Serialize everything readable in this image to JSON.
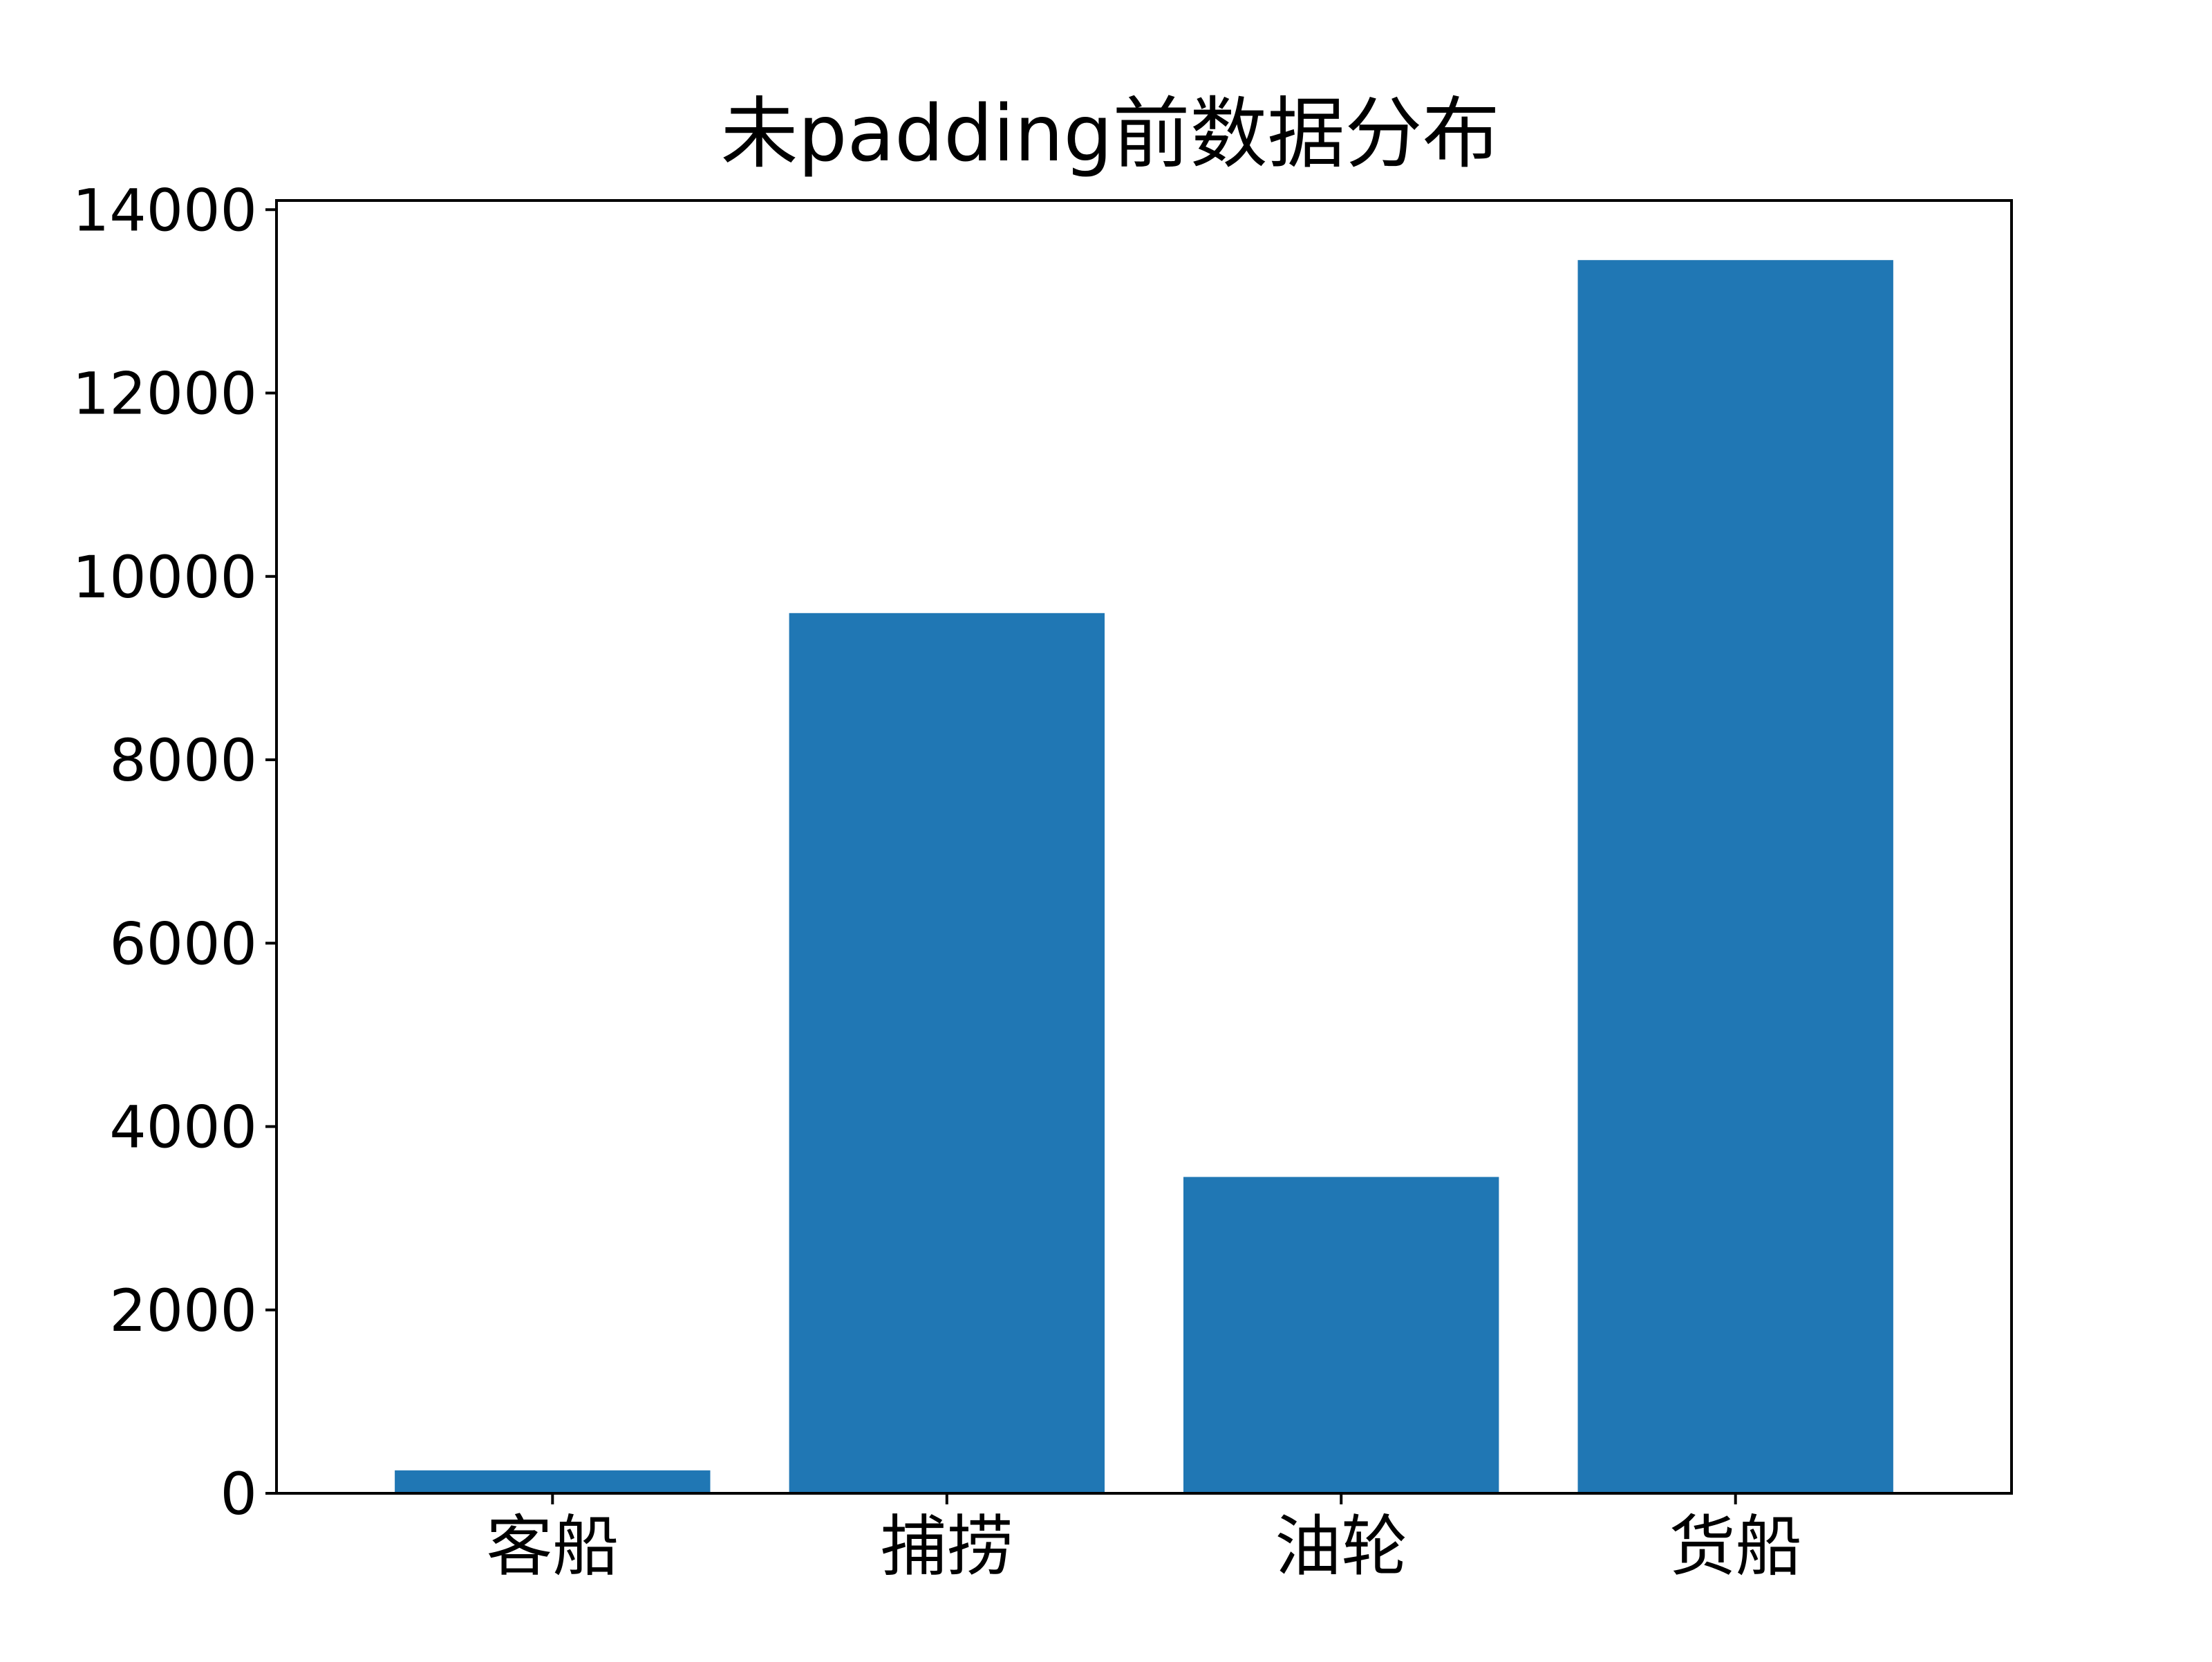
{
  "chart_data": {
    "type": "bar",
    "title": "未padding前数据分布",
    "xlabel": "",
    "ylabel": "",
    "categories": [
      "客船",
      "捕捞",
      "油轮",
      "货船"
    ],
    "values": [
      250,
      9600,
      3450,
      13450
    ],
    "ylim": [
      0,
      14100
    ],
    "yticks": [
      0,
      2000,
      4000,
      6000,
      8000,
      10000,
      12000,
      14000
    ],
    "ytick_labels": [
      "0",
      "2000",
      "4000",
      "6000",
      "8000",
      "10000",
      "12000",
      "14000"
    ],
    "grid": false,
    "legend": "none",
    "colors": {
      "bar": "#2077b4",
      "axis": "#000000",
      "background": "#ffffff"
    }
  }
}
